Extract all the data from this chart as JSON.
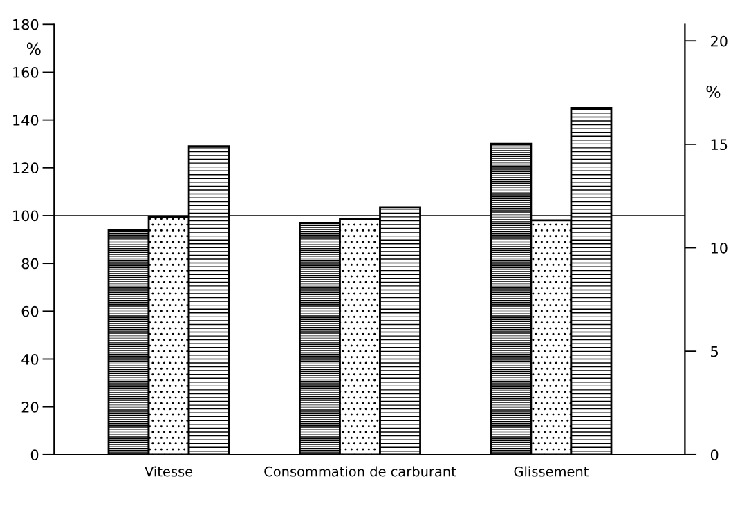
{
  "chart_data": {
    "type": "bar",
    "ylabel": "%",
    "y2label": "%",
    "categories": [
      "Vitesse",
      "Consommation de carburant",
      "Glissement"
    ],
    "series": [
      {
        "color": "#000000",
        "values": [
          94,
          97,
          130
        ]
      },
      {
        "color": "#000000",
        "values": [
          99.5,
          98.5,
          98
        ]
      },
      {
        "color": "#000000",
        "values": [
          129,
          103.5,
          145
        ]
      }
    ],
    "ylim": [
      0,
      180
    ],
    "yticks": [
      0,
      20,
      40,
      60,
      80,
      100,
      120,
      140,
      160,
      180
    ],
    "y2lim": [
      0,
      20.8
    ],
    "y2ticks": [
      0,
      5,
      10,
      15,
      20
    ],
    "ref_lines": [
      {
        "axis": "y",
        "value": 100,
        "color": "#000000",
        "line_style": "solid"
      }
    ],
    "grid": false,
    "legend": false
  }
}
